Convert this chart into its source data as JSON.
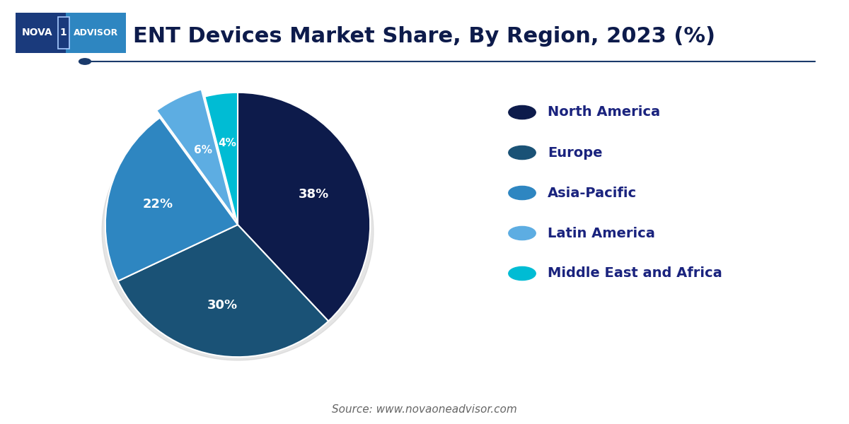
{
  "title": "ENT Devices Market Share, By Region, 2023 (%)",
  "title_fontsize": 22,
  "title_color": "#0d1b4b",
  "labels": [
    "North America",
    "Europe",
    "Asia-Pacific",
    "Latin America",
    "Middle East and Africa"
  ],
  "values": [
    38,
    30,
    22,
    6,
    4
  ],
  "colors": [
    "#0d1b4b",
    "#1a5276",
    "#2e86c1",
    "#5dade2",
    "#00bcd4"
  ],
  "explode": [
    0,
    0,
    0,
    0.06,
    0
  ],
  "pct_labels": [
    "38%",
    "30%",
    "22%",
    "6%",
    "4%"
  ],
  "legend_fontsize": 14,
  "legend_text_color": "#1a237e",
  "source_text": "Source: www.novaoneadvisor.com",
  "source_fontsize": 11,
  "background_color": "#ffffff",
  "startangle": 90,
  "line_color": "#1a3a6b",
  "logo_dark": "#1a3a7c",
  "logo_light": "#2e86c1"
}
